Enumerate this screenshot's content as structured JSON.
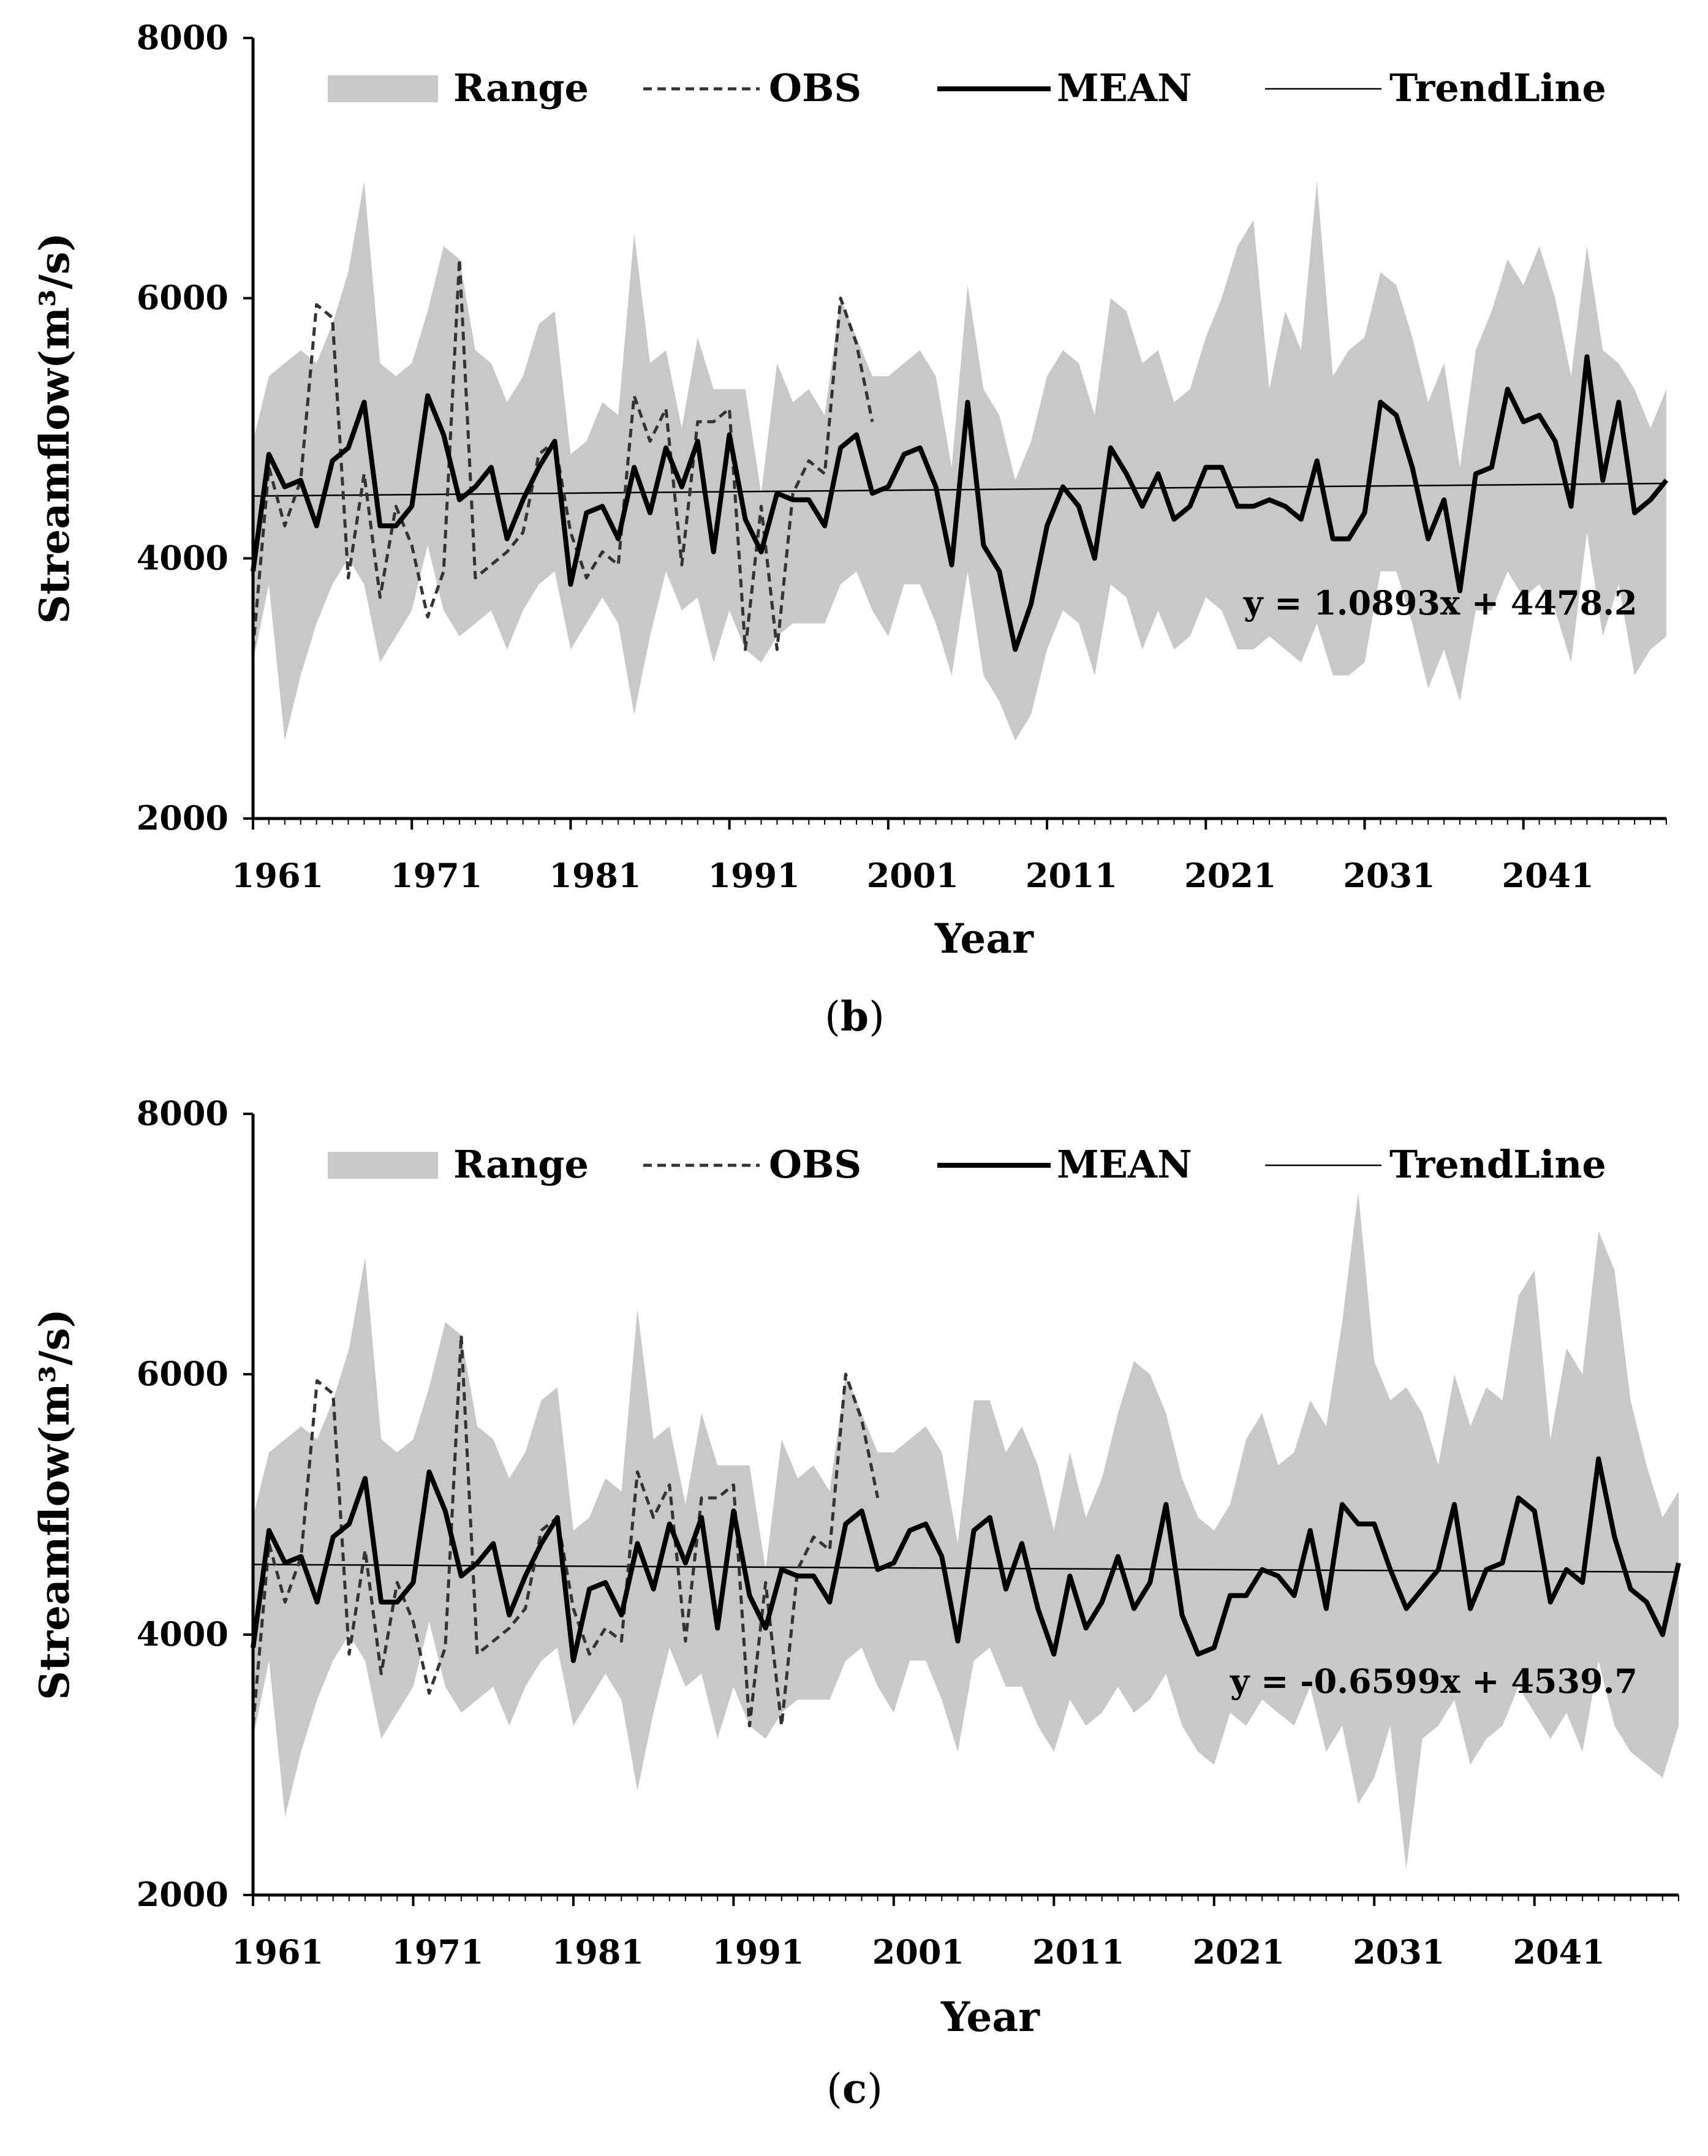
{
  "chart_data": [
    {
      "panel": "(b)",
      "caption_open": "(",
      "caption_letter": "b",
      "caption_close": ")",
      "type": "line",
      "xlabel": "Year",
      "ylabel": "Streamflow(m³/s)",
      "ylim": [
        2000,
        8000
      ],
      "xlim": [
        1961,
        2050
      ],
      "yticks": [
        2000,
        4000,
        6000,
        8000
      ],
      "xticks": [
        1961,
        1971,
        1981,
        1991,
        2001,
        2011,
        2021,
        2031,
        2041
      ],
      "legend": [
        "Range",
        "OBS",
        "MEAN",
        "TrendLine"
      ],
      "equation": "y = 1.0893x + 4478.2",
      "trend": {
        "slope": 1.0893,
        "intercept": 4478.2
      },
      "obs": [
        3300,
        4700,
        4250,
        4600,
        5950,
        5850,
        3850,
        4650,
        3700,
        4400,
        4100,
        3550,
        3900,
        6300,
        3850,
        3950,
        4050,
        4200,
        4800,
        4900,
        4200,
        3850,
        4050,
        3950,
        5250,
        4900,
        5150,
        3950,
        5050,
        5050,
        5150,
        3300,
        4400,
        3300,
        4500,
        4750,
        4650,
        6000,
        5650,
        5050
      ],
      "mean": [
        3900,
        4800,
        4550,
        4600,
        4250,
        4750,
        4850,
        5200,
        4250,
        4250,
        4400,
        5250,
        4950,
        4450,
        4550,
        4700,
        4150,
        4450,
        4700,
        4900,
        3800,
        4350,
        4400,
        4150,
        4700,
        4350,
        4850,
        4550,
        4900,
        4050,
        4950,
        4300,
        4050,
        4500,
        4450,
        4450,
        4250,
        4850,
        4950,
        4500,
        4550,
        4800,
        4850,
        4550,
        3950,
        5200,
        4100,
        3900,
        3300,
        3650,
        4250,
        4550,
        4400,
        4000,
        4850,
        4650,
        4400,
        4650,
        4300,
        4400,
        4700,
        4700,
        4400,
        4400,
        4450,
        4400,
        4300,
        4750,
        4150,
        4150,
        4350,
        5200,
        5100,
        4700,
        4150,
        4450,
        3750,
        4650,
        4700,
        5300,
        5050,
        5100,
        4900,
        4400,
        5550,
        4600,
        5200,
        4350,
        4450,
        4600
      ],
      "range_upper": [
        4900,
        5400,
        5500,
        5600,
        5500,
        5800,
        6200,
        6900,
        5500,
        5400,
        5500,
        5900,
        6400,
        6300,
        5600,
        5500,
        5200,
        5400,
        5800,
        5900,
        4800,
        4900,
        5200,
        5100,
        6500,
        5500,
        5600,
        5000,
        5700,
        5300,
        5300,
        5300,
        4500,
        5500,
        5200,
        5300,
        5100,
        6000,
        5700,
        5400,
        5400,
        5500,
        5600,
        5400,
        4700,
        6100,
        5300,
        5100,
        4600,
        4900,
        5400,
        5600,
        5500,
        5100,
        6000,
        5900,
        5500,
        5600,
        5200,
        5300,
        5700,
        6000,
        6400,
        6600,
        5300,
        5900,
        5600,
        6900,
        5400,
        5600,
        5700,
        6200,
        6100,
        5700,
        5200,
        5500,
        4700,
        5600,
        5900,
        6300,
        6100,
        6400,
        6000,
        5400,
        6400,
        5600,
        5500,
        5300,
        5000,
        5300
      ],
      "range_lower": [
        3200,
        3800,
        2600,
        3100,
        3500,
        3800,
        4000,
        3800,
        3200,
        3400,
        3600,
        4100,
        3600,
        3400,
        3500,
        3600,
        3300,
        3600,
        3800,
        3900,
        3300,
        3500,
        3700,
        3500,
        2800,
        3400,
        3900,
        3600,
        3700,
        3200,
        3600,
        3300,
        3200,
        3400,
        3500,
        3500,
        3500,
        3800,
        3900,
        3600,
        3400,
        3800,
        3800,
        3500,
        3100,
        3900,
        3100,
        2900,
        2600,
        2800,
        3300,
        3600,
        3500,
        3100,
        3800,
        3700,
        3300,
        3600,
        3300,
        3400,
        3700,
        3600,
        3300,
        3300,
        3400,
        3300,
        3200,
        3500,
        3100,
        3100,
        3200,
        3900,
        3900,
        3500,
        3000,
        3300,
        2900,
        3600,
        3600,
        3900,
        3700,
        3800,
        3600,
        3200,
        4200,
        3400,
        3800,
        3100,
        3300,
        3400
      ]
    },
    {
      "panel": "(c)",
      "caption_open": "(",
      "caption_letter": "c",
      "caption_close": ")",
      "type": "line",
      "xlabel": "Year",
      "ylabel": "Streamflow(m³/s)",
      "ylim": [
        2000,
        8000
      ],
      "xlim": [
        1961,
        2050
      ],
      "yticks": [
        2000,
        4000,
        6000,
        8000
      ],
      "xticks": [
        1961,
        1971,
        1981,
        1991,
        2001,
        2011,
        2021,
        2031,
        2041
      ],
      "legend": [
        "Range",
        "OBS",
        "MEAN",
        "TrendLine"
      ],
      "equation": "y = -0.6599x + 4539.7",
      "trend": {
        "slope": -0.6599,
        "intercept": 4539.7
      },
      "obs": [
        3300,
        4700,
        4250,
        4600,
        5950,
        5850,
        3850,
        4650,
        3700,
        4400,
        4100,
        3550,
        3900,
        6300,
        3850,
        3950,
        4050,
        4200,
        4800,
        4900,
        4200,
        3850,
        4050,
        3950,
        5250,
        4900,
        5150,
        3950,
        5050,
        5050,
        5150,
        3300,
        4400,
        3300,
        4500,
        4750,
        4650,
        6000,
        5650,
        5050
      ],
      "mean": [
        3900,
        4800,
        4550,
        4600,
        4250,
        4750,
        4850,
        5200,
        4250,
        4250,
        4400,
        5250,
        4950,
        4450,
        4550,
        4700,
        4150,
        4450,
        4700,
        4900,
        3800,
        4350,
        4400,
        4150,
        4700,
        4350,
        4850,
        4550,
        4900,
        4050,
        4950,
        4300,
        4050,
        4500,
        4450,
        4450,
        4250,
        4850,
        4950,
        4500,
        4550,
        4800,
        4850,
        4600,
        3950,
        4800,
        4900,
        4350,
        4700,
        4200,
        3850,
        4450,
        4050,
        4250,
        4600,
        4200,
        4400,
        5000,
        4150,
        3850,
        3900,
        4300,
        4300,
        4500,
        4450,
        4300,
        4800,
        4200,
        5000,
        4850,
        4850,
        4500,
        4200,
        4350,
        4500,
        5000,
        4200,
        4500,
        4550,
        5050,
        4950,
        4250,
        4500,
        4400,
        5350,
        4750,
        4350,
        4250,
        4000,
        4550
      ],
      "range_upper": [
        4900,
        5400,
        5500,
        5600,
        5500,
        5800,
        6200,
        6900,
        5500,
        5400,
        5500,
        5900,
        6400,
        6300,
        5600,
        5500,
        5200,
        5400,
        5800,
        5900,
        4800,
        4900,
        5200,
        5100,
        6500,
        5500,
        5600,
        5000,
        5700,
        5300,
        5300,
        5300,
        4500,
        5500,
        5200,
        5300,
        5100,
        6000,
        5700,
        5400,
        5400,
        5500,
        5600,
        5400,
        4700,
        5800,
        5800,
        5400,
        5600,
        5300,
        4800,
        5400,
        4900,
        5200,
        5700,
        6100,
        6000,
        5700,
        5200,
        4900,
        4800,
        5000,
        5500,
        5700,
        5300,
        5400,
        5800,
        5600,
        6400,
        7400,
        6100,
        5800,
        5900,
        5700,
        5300,
        6000,
        5600,
        5900,
        5800,
        6600,
        6800,
        5500,
        6200,
        6000,
        7100,
        6800,
        5800,
        5300,
        4900,
        5100
      ],
      "range_lower": [
        3200,
        3800,
        2600,
        3100,
        3500,
        3800,
        4000,
        3800,
        3200,
        3400,
        3600,
        4100,
        3600,
        3400,
        3500,
        3600,
        3300,
        3600,
        3800,
        3900,
        3300,
        3500,
        3700,
        3500,
        2800,
        3400,
        3900,
        3600,
        3700,
        3200,
        3600,
        3300,
        3200,
        3400,
        3500,
        3500,
        3500,
        3800,
        3900,
        3600,
        3400,
        3800,
        3800,
        3500,
        3100,
        3800,
        3900,
        3600,
        3600,
        3300,
        3100,
        3500,
        3300,
        3400,
        3600,
        3400,
        3500,
        3700,
        3300,
        3100,
        3000,
        3400,
        3300,
        3500,
        3400,
        3300,
        3600,
        3100,
        3300,
        2700,
        2900,
        3300,
        2200,
        3200,
        3300,
        3500,
        3000,
        3200,
        3300,
        3600,
        3400,
        3200,
        3400,
        3100,
        3800,
        3300,
        3100,
        3000,
        2900,
        3300
      ]
    }
  ]
}
